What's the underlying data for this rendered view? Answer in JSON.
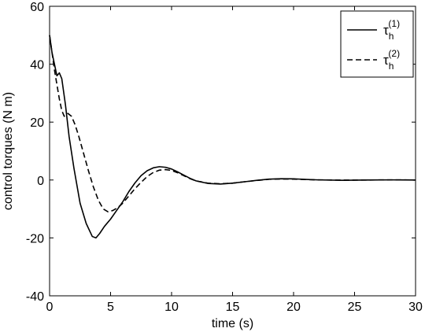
{
  "chart_data": {
    "type": "line",
    "title": "",
    "xlabel": "time (s)",
    "ylabel": "control torques (N m)",
    "xlim": [
      0,
      30
    ],
    "ylim": [
      -40,
      60
    ],
    "xticks": [
      0,
      5,
      10,
      15,
      20,
      25,
      30
    ],
    "yticks": [
      -40,
      -20,
      0,
      20,
      40,
      60
    ],
    "grid": false,
    "legend_position": "top-right",
    "series": [
      {
        "name": "τ_h^(1)",
        "label_main": "τ",
        "label_sub": "h",
        "label_sup": "(1)",
        "style": "solid",
        "color": "#000000",
        "x": [
          0,
          0.2,
          0.4,
          0.6,
          0.8,
          1.0,
          1.3,
          1.6,
          2.0,
          2.5,
          3.0,
          3.5,
          3.8,
          4.1,
          4.5,
          5.0,
          5.5,
          6.0,
          6.5,
          7.0,
          7.5,
          8.0,
          8.5,
          9.0,
          9.5,
          10.0,
          10.5,
          11.0,
          11.5,
          12.0,
          13.0,
          14.0,
          15.0,
          16.0,
          17.0,
          18.0,
          19.0,
          20.0,
          21.0,
          22.0,
          24.0,
          26.0,
          28.0,
          30.0
        ],
        "y": [
          50,
          44,
          40,
          36,
          37,
          35,
          26,
          15,
          4,
          -8,
          -15,
          -19.5,
          -20,
          -18.5,
          -16,
          -13.5,
          -10.5,
          -7.5,
          -4,
          -1,
          1.5,
          3.2,
          4.2,
          4.6,
          4.4,
          3.8,
          2.8,
          1.7,
          0.6,
          -0.3,
          -1.2,
          -1.4,
          -1.1,
          -0.6,
          -0.1,
          0.3,
          0.45,
          0.4,
          0.2,
          0.05,
          -0.1,
          0,
          0.05,
          0
        ]
      },
      {
        "name": "τ_h^(2)",
        "label_main": "τ",
        "label_sub": "h",
        "label_sup": "(2)",
        "style": "dashed",
        "color": "#000000",
        "x": [
          0,
          0.2,
          0.4,
          0.6,
          0.8,
          1.0,
          1.2,
          1.5,
          1.8,
          2.1,
          2.4,
          2.8,
          3.2,
          3.6,
          4.0,
          4.4,
          4.8,
          5.2,
          5.6,
          6.0,
          6.5,
          7.0,
          7.5,
          8.0,
          8.5,
          9.0,
          9.5,
          10.0,
          10.5,
          11.0,
          11.5,
          12.0,
          13.0,
          14.0,
          15.0,
          16.0,
          17.0,
          18.0,
          19.0,
          20.0,
          21.0,
          22.0,
          24.0,
          26.0,
          28.0,
          30.0
        ],
        "y": [
          50,
          44,
          38,
          33,
          28,
          24,
          22,
          23,
          22,
          19,
          15,
          9,
          3,
          -2.5,
          -7,
          -10,
          -11,
          -10.5,
          -9.5,
          -8,
          -5.5,
          -3,
          -0.8,
          1.2,
          2.6,
          3.4,
          3.6,
          3.3,
          2.5,
          1.5,
          0.5,
          -0.3,
          -1.1,
          -1.3,
          -1.1,
          -0.6,
          -0.15,
          0.25,
          0.35,
          0.3,
          0.15,
          0.05,
          -0.05,
          0,
          0.05,
          0
        ]
      }
    ]
  }
}
